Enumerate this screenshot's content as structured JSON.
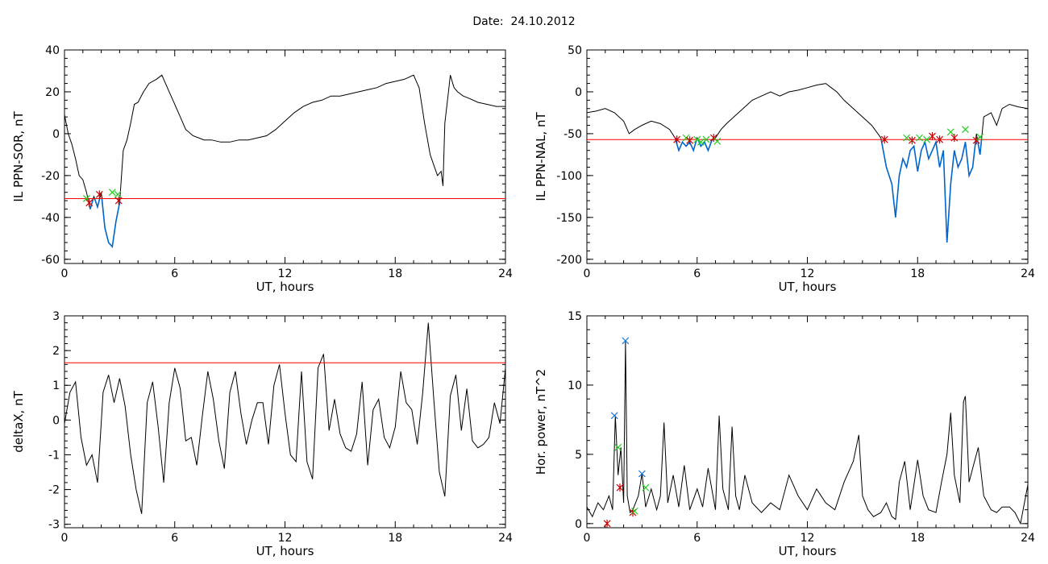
{
  "title": "Date:  24.10.2012",
  "colors": {
    "trace": "#000000",
    "threshold": "#ff0000",
    "below": "#0066cc",
    "mark_red": "#cc0000",
    "mark_green": "#22cc22",
    "mark_blue": "#1e78dc"
  },
  "chart_data": [
    {
      "id": "il-ppn-sor",
      "type": "line",
      "ylabel": "IL PPN-SOR, nT",
      "xlabel": "UT, hours",
      "xlim": [
        0,
        24
      ],
      "ylim": [
        -62,
        40
      ],
      "xticks": [
        0,
        6,
        12,
        18,
        24
      ],
      "yticks": [
        -60,
        -40,
        -20,
        0,
        20,
        40
      ],
      "threshold": -31,
      "below_threshold_highlight": true,
      "series": [
        {
          "x": [
            0,
            0.2,
            0.4,
            0.6,
            0.8,
            1.0,
            1.2,
            1.4,
            1.6,
            1.8,
            2.0,
            2.2,
            2.4,
            2.6,
            2.8,
            3.0,
            3.2,
            3.4,
            3.6,
            3.8,
            4.0,
            4.3,
            4.6,
            5.0,
            5.3,
            5.6,
            6.0,
            6.3,
            6.6,
            7.0,
            7.3,
            7.6,
            8.0,
            8.5,
            9.0,
            9.5,
            10.0,
            10.5,
            11.0,
            11.5,
            12.0,
            12.5,
            13.0,
            13.5,
            14.0,
            14.5,
            15.0,
            15.5,
            16.0,
            16.5,
            17.0,
            17.5,
            18.0,
            18.5,
            19.0,
            19.3,
            19.6,
            19.9,
            20.1,
            20.3,
            20.5,
            20.6,
            20.7,
            20.9,
            21.0,
            21.2,
            21.4,
            21.7,
            22.0,
            22.5,
            23.0,
            23.5,
            24.0
          ],
          "y": [
            9,
            0,
            -5,
            -12,
            -20,
            -22,
            -28,
            -36,
            -30,
            -35,
            -28,
            -45,
            -52,
            -54,
            -42,
            -33,
            -8,
            -3,
            5,
            14,
            15,
            20,
            24,
            26,
            28,
            22,
            14,
            8,
            2,
            -1,
            -2,
            -3,
            -3,
            -4,
            -4,
            -3,
            -3,
            -2,
            -1,
            2,
            6,
            10,
            13,
            15,
            16,
            18,
            18,
            19,
            20,
            21,
            22,
            24,
            25,
            26,
            28,
            22,
            5,
            -10,
            -15,
            -20,
            -18,
            -25,
            5,
            20,
            28,
            22,
            20,
            18,
            17,
            15,
            14,
            13,
            13
          ]
        }
      ],
      "markers": [
        {
          "x": 1.2,
          "y": -31,
          "color": "green"
        },
        {
          "x": 1.35,
          "y": -33,
          "color": "red"
        },
        {
          "x": 1.9,
          "y": -29,
          "color": "red"
        },
        {
          "x": 2.6,
          "y": -28,
          "color": "green"
        },
        {
          "x": 2.9,
          "y": -29,
          "color": "green"
        },
        {
          "x": 2.95,
          "y": -32,
          "color": "red"
        }
      ]
    },
    {
      "id": "il-ppn-nal",
      "type": "line",
      "ylabel": "IL PPN-NAL, nT",
      "xlabel": "UT, hours",
      "xlim": [
        0,
        24
      ],
      "ylim": [
        -205,
        50
      ],
      "xticks": [
        0,
        6,
        12,
        18,
        24
      ],
      "yticks": [
        -200,
        -150,
        -100,
        -50,
        0,
        50
      ],
      "threshold": -57,
      "below_threshold_highlight": true,
      "series": [
        {
          "x": [
            0,
            0.5,
            1.0,
            1.5,
            2.0,
            2.3,
            2.6,
            3.0,
            3.5,
            4.0,
            4.5,
            4.8,
            5.0,
            5.2,
            5.4,
            5.6,
            5.8,
            6.0,
            6.2,
            6.4,
            6.6,
            6.8,
            7.0,
            7.3,
            7.6,
            8.0,
            8.5,
            9.0,
            9.5,
            10.0,
            10.5,
            11.0,
            11.5,
            12.0,
            12.5,
            13.0,
            13.3,
            13.6,
            14.0,
            14.5,
            15.0,
            15.5,
            16.0,
            16.3,
            16.6,
            16.8,
            17.0,
            17.2,
            17.4,
            17.6,
            17.8,
            18.0,
            18.2,
            18.4,
            18.6,
            18.8,
            19.0,
            19.2,
            19.4,
            19.6,
            19.8,
            20.0,
            20.2,
            20.4,
            20.6,
            20.8,
            21.0,
            21.2,
            21.4,
            21.6,
            22.0,
            22.3,
            22.6,
            23.0,
            23.5,
            24.0
          ],
          "y": [
            -25,
            -23,
            -20,
            -25,
            -35,
            -50,
            -45,
            -40,
            -35,
            -38,
            -45,
            -55,
            -70,
            -60,
            -65,
            -60,
            -70,
            -55,
            -65,
            -60,
            -70,
            -58,
            -55,
            -45,
            -38,
            -30,
            -20,
            -10,
            -5,
            0,
            -5,
            0,
            2,
            5,
            8,
            10,
            5,
            0,
            -10,
            -20,
            -30,
            -40,
            -55,
            -90,
            -110,
            -150,
            -100,
            -80,
            -90,
            -70,
            -65,
            -95,
            -70,
            -60,
            -80,
            -70,
            -60,
            -90,
            -70,
            -180,
            -110,
            -70,
            -90,
            -80,
            -60,
            -100,
            -90,
            -50,
            -75,
            -30,
            -25,
            -40,
            -20,
            -15,
            -18,
            -20
          ]
        }
      ],
      "markers": [
        {
          "x": 4.9,
          "y": -57,
          "color": "red"
        },
        {
          "x": 5.4,
          "y": -55,
          "color": "green"
        },
        {
          "x": 5.6,
          "y": -58,
          "color": "red"
        },
        {
          "x": 6.0,
          "y": -57,
          "color": "green"
        },
        {
          "x": 6.2,
          "y": -60,
          "color": "green"
        },
        {
          "x": 6.5,
          "y": -57,
          "color": "green"
        },
        {
          "x": 6.9,
          "y": -55,
          "color": "red"
        },
        {
          "x": 7.1,
          "y": -59,
          "color": "green"
        },
        {
          "x": 16.2,
          "y": -57,
          "color": "red"
        },
        {
          "x": 17.4,
          "y": -55,
          "color": "green"
        },
        {
          "x": 17.7,
          "y": -58,
          "color": "red"
        },
        {
          "x": 18.1,
          "y": -55,
          "color": "green"
        },
        {
          "x": 18.5,
          "y": -57,
          "color": "green"
        },
        {
          "x": 18.8,
          "y": -53,
          "color": "red"
        },
        {
          "x": 19.2,
          "y": -57,
          "color": "red"
        },
        {
          "x": 19.8,
          "y": -48,
          "color": "green"
        },
        {
          "x": 20.0,
          "y": -55,
          "color": "red"
        },
        {
          "x": 20.6,
          "y": -45,
          "color": "green"
        },
        {
          "x": 21.2,
          "y": -58,
          "color": "red"
        },
        {
          "x": 21.4,
          "y": -54,
          "color": "green"
        }
      ]
    },
    {
      "id": "deltax",
      "type": "line",
      "ylabel": "deltaX, nT",
      "xlabel": "UT, hours",
      "xlim": [
        0,
        24
      ],
      "ylim": [
        -3.1,
        3.0
      ],
      "xticks": [
        0,
        6,
        12,
        18,
        24
      ],
      "yticks": [
        -3,
        -2,
        -1,
        0,
        1,
        2,
        3
      ],
      "threshold": 1.65,
      "below_threshold_highlight": false,
      "series": [
        {
          "x": [
            0,
            0.3,
            0.6,
            0.9,
            1.2,
            1.5,
            1.8,
            2.1,
            2.4,
            2.7,
            3.0,
            3.3,
            3.6,
            3.9,
            4.2,
            4.5,
            4.8,
            5.1,
            5.4,
            5.7,
            6.0,
            6.3,
            6.6,
            6.9,
            7.2,
            7.5,
            7.8,
            8.1,
            8.4,
            8.7,
            9.0,
            9.3,
            9.6,
            9.9,
            10.2,
            10.5,
            10.8,
            11.1,
            11.4,
            11.7,
            12.0,
            12.3,
            12.6,
            12.9,
            13.2,
            13.5,
            13.8,
            14.1,
            14.4,
            14.7,
            15.0,
            15.3,
            15.6,
            15.9,
            16.2,
            16.5,
            16.8,
            17.1,
            17.4,
            17.7,
            18.0,
            18.3,
            18.6,
            18.9,
            19.2,
            19.5,
            19.8,
            20.1,
            20.4,
            20.7,
            21.0,
            21.3,
            21.6,
            21.9,
            22.2,
            22.5,
            22.8,
            23.1,
            23.4,
            23.7,
            24.0
          ],
          "y": [
            -0.1,
            0.8,
            1.1,
            -0.5,
            -1.3,
            -1.0,
            -1.8,
            0.8,
            1.3,
            0.5,
            1.2,
            0.4,
            -1.0,
            -2.0,
            -2.7,
            0.5,
            1.1,
            -0.2,
            -1.8,
            0.5,
            1.5,
            0.9,
            -0.6,
            -0.5,
            -1.3,
            0.1,
            1.4,
            0.6,
            -0.6,
            -1.4,
            0.8,
            1.4,
            0.2,
            -0.7,
            0.0,
            0.5,
            0.5,
            -0.7,
            1.0,
            1.6,
            0.2,
            -1.0,
            -1.2,
            1.4,
            -1.2,
            -1.7,
            1.5,
            1.9,
            -0.3,
            0.6,
            -0.4,
            -0.8,
            -0.9,
            -0.4,
            1.1,
            -1.3,
            0.3,
            0.6,
            -0.5,
            -0.8,
            -0.2,
            1.4,
            0.5,
            0.3,
            -0.7,
            0.8,
            2.8,
            0.6,
            -1.5,
            -2.2,
            0.7,
            1.3,
            -0.3,
            0.9,
            -0.6,
            -0.8,
            -0.7,
            -0.5,
            0.5,
            -0.1,
            1.5
          ]
        }
      ],
      "markers": []
    },
    {
      "id": "hor-power",
      "type": "line",
      "ylabel": "Hor. power, nT^2",
      "xlabel": "UT, hours",
      "xlim": [
        0,
        24
      ],
      "ylim": [
        -0.3,
        15
      ],
      "xticks": [
        0,
        6,
        12,
        18,
        24
      ],
      "yticks": [
        0,
        5,
        10,
        15
      ],
      "threshold": null,
      "below_threshold_highlight": false,
      "series": [
        {
          "x": [
            0,
            0.3,
            0.6,
            0.9,
            1.2,
            1.4,
            1.55,
            1.7,
            1.85,
            2.0,
            2.1,
            2.2,
            2.35,
            2.5,
            2.8,
            3.0,
            3.2,
            3.5,
            3.8,
            4.0,
            4.2,
            4.4,
            4.7,
            5.0,
            5.3,
            5.6,
            6.0,
            6.3,
            6.6,
            7.0,
            7.2,
            7.4,
            7.7,
            7.9,
            8.1,
            8.3,
            8.6,
            9.0,
            9.5,
            10.0,
            10.5,
            11.0,
            11.5,
            12.0,
            12.5,
            13.0,
            13.5,
            14.0,
            14.5,
            14.8,
            15.0,
            15.3,
            15.6,
            16.0,
            16.3,
            16.6,
            16.8,
            17.0,
            17.3,
            17.6,
            18.0,
            18.3,
            18.6,
            19.0,
            19.3,
            19.6,
            19.8,
            20.0,
            20.3,
            20.5,
            20.6,
            20.8,
            21.0,
            21.3,
            21.6,
            22.0,
            22.3,
            22.6,
            23.0,
            23.3,
            23.6,
            24.0
          ],
          "y": [
            1.2,
            0.5,
            1.5,
            1.0,
            2.0,
            1.0,
            7.8,
            3.5,
            5.5,
            1.5,
            13.2,
            2.0,
            0.8,
            1.0,
            2.0,
            3.6,
            1.2,
            2.5,
            1.0,
            2.0,
            7.3,
            1.5,
            3.5,
            1.2,
            4.2,
            1.0,
            2.5,
            1.2,
            4.0,
            1.0,
            7.8,
            2.5,
            1.0,
            7.0,
            2.0,
            1.0,
            3.5,
            1.5,
            0.8,
            1.5,
            1.0,
            3.5,
            2.0,
            1.0,
            2.5,
            1.5,
            1.0,
            3.0,
            4.5,
            6.4,
            2.0,
            1.0,
            0.5,
            0.8,
            1.5,
            0.5,
            0.3,
            3.0,
            4.5,
            1.0,
            4.6,
            2.0,
            1.0,
            0.8,
            3.0,
            5.0,
            8.0,
            3.5,
            1.5,
            8.8,
            9.2,
            3.0,
            4.0,
            5.5,
            2.0,
            1.0,
            0.8,
            1.2,
            1.2,
            0.8,
            0.0,
            2.8
          ]
        }
      ],
      "markers": [
        {
          "x": 1.1,
          "y": 0.0,
          "color": "red"
        },
        {
          "x": 1.5,
          "y": 7.8,
          "color": "blue"
        },
        {
          "x": 1.7,
          "y": 5.5,
          "color": "green"
        },
        {
          "x": 1.8,
          "y": 2.6,
          "color": "red"
        },
        {
          "x": 2.1,
          "y": 13.2,
          "color": "blue"
        },
        {
          "x": 2.5,
          "y": 0.8,
          "color": "red"
        },
        {
          "x": 2.6,
          "y": 0.9,
          "color": "green"
        },
        {
          "x": 3.0,
          "y": 3.6,
          "color": "blue"
        },
        {
          "x": 3.2,
          "y": 2.6,
          "color": "green"
        }
      ]
    }
  ]
}
